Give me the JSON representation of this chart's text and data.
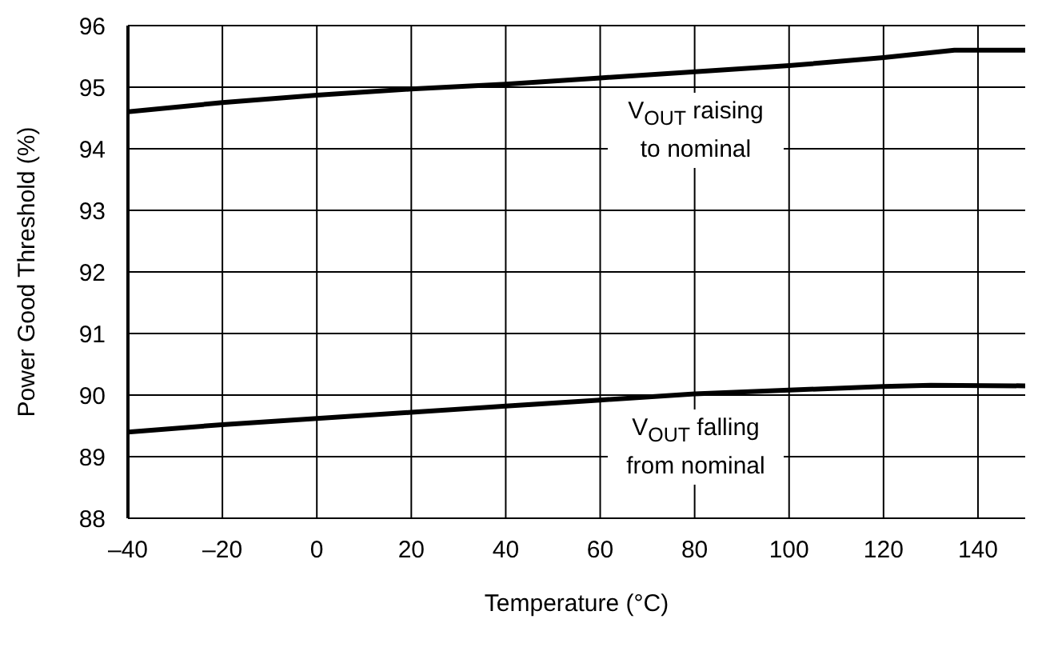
{
  "chart_data": {
    "type": "line",
    "xlabel": "Temperature (°C)",
    "ylabel": "Power Good Threshold (%)",
    "x": [
      -40,
      -20,
      0,
      20,
      40,
      60,
      80,
      100,
      120,
      135,
      150
    ],
    "series": [
      {
        "color": "#000000",
        "values": [
          94.6,
          94.75,
          94.87,
          94.97,
          95.05,
          95.15,
          95.25,
          95.35,
          95.48,
          95.6,
          95.6
        ]
      },
      {
        "color": "#000000",
        "x": [
          -40,
          -20,
          0,
          20,
          40,
          60,
          80,
          100,
          120,
          130,
          150
        ],
        "values": [
          89.4,
          89.52,
          89.62,
          89.72,
          89.82,
          89.92,
          90.02,
          90.08,
          90.14,
          90.16,
          90.15
        ]
      }
    ],
    "xlim": [
      -40,
      150
    ],
    "xticks": [
      {
        "value": -40,
        "label": "–40"
      },
      {
        "value": -20,
        "label": "–20"
      },
      0,
      20,
      40,
      60,
      80,
      100,
      120,
      140
    ],
    "ylim": [
      88,
      96
    ],
    "yticks": [
      88,
      89,
      90,
      91,
      92,
      93,
      94,
      95,
      96
    ],
    "grid": true,
    "marker": "none",
    "line_style": "solid",
    "annotations": [
      "V$_{OUT}$ raising\nto nominal",
      "V$_{OUT}$ falling\nfrom nominal"
    ]
  }
}
